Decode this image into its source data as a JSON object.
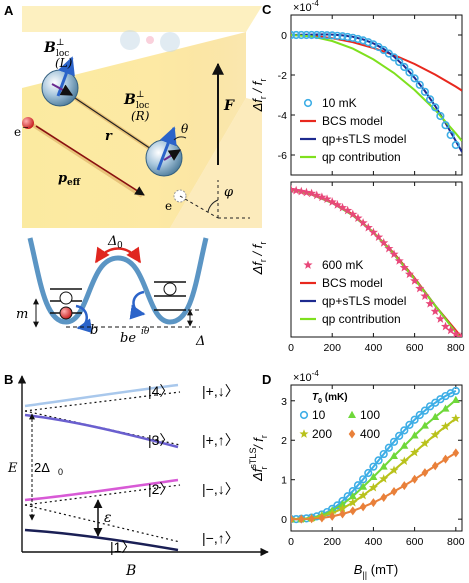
{
  "panels": {
    "A": {
      "label": "A",
      "spin_L": "B",
      "spin_L_sup": "⊥",
      "spin_L_sub": "loc",
      "spin_L_tag": "(L)",
      "spin_R_tag": "(R)",
      "theta": "θ",
      "phi": "φ",
      "force": "F",
      "r": "r",
      "p_eff": "p",
      "p_eff_sub": "eff",
      "electron": "e",
      "electron_sup": "−",
      "delta0": "Δ",
      "delta0_sub": "0",
      "m": "m",
      "b": "b",
      "b_phase": "be",
      "b_phase_sup": "iθ",
      "delta": "Δ"
    },
    "B": {
      "label": "B",
      "ylabel": "E",
      "xlabel": "B",
      "gap": "2Δ",
      "gap_sub": "0",
      "eps": "ε",
      "levels": [
        "|4〉",
        "|3〉",
        "|2〉",
        "|1〉"
      ],
      "asym": [
        "|+,↓〉",
        "|+,↑〉",
        "|−,↓〉",
        "|−,↑〉"
      ],
      "colors": [
        "#a9c8ec",
        "#6a5fcf",
        "#d85ad6",
        "#1a1f55"
      ]
    }
  },
  "chart_data": [
    {
      "panel": "C",
      "type": "line",
      "multiplier": "×10",
      "multiplier_exp": "-4",
      "ylabel": "Δf",
      "ylabel_sub": "r",
      "ylabel_tail": " / f",
      "xlim": [
        0,
        830
      ],
      "ylim": [
        -7,
        1
      ],
      "yticks": [
        0,
        -2,
        -4,
        -6
      ],
      "xticks": [
        0,
        200,
        400,
        600,
        800
      ],
      "show_xtick_labels": false,
      "legend_position": "bottom-left",
      "series": [
        {
          "name": "10 mK",
          "kind": "marker",
          "marker": "circle",
          "color": "#3eaee6",
          "x": [
            0,
            25,
            50,
            75,
            100,
            125,
            150,
            175,
            200,
            225,
            250,
            275,
            300,
            325,
            350,
            375,
            400,
            425,
            450,
            475,
            500,
            525,
            550,
            575,
            600,
            625,
            650,
            675,
            700,
            725,
            750,
            775,
            800
          ],
          "y": [
            0.0,
            0.0,
            0.0,
            0.0,
            0.0,
            0.0,
            0.0,
            -0.01,
            -0.02,
            -0.04,
            -0.06,
            -0.1,
            -0.14,
            -0.2,
            -0.27,
            -0.36,
            -0.47,
            -0.6,
            -0.75,
            -0.93,
            -1.12,
            -1.35,
            -1.6,
            -1.87,
            -2.17,
            -2.49,
            -2.84,
            -3.22,
            -3.62,
            -4.05,
            -4.51,
            -5.0,
            -5.5
          ]
        },
        {
          "name": "BCS model",
          "kind": "line",
          "color": "#e8281e",
          "x": [
            0,
            100,
            200,
            300,
            400,
            500,
            600,
            700,
            800,
            830
          ],
          "y": [
            0.0,
            -0.03,
            -0.16,
            -0.36,
            -0.65,
            -1.0,
            -1.45,
            -1.98,
            -2.58,
            -2.78
          ]
        },
        {
          "name": "qp+sTLS model",
          "kind": "line",
          "color": "#1d2a8f",
          "x": [
            0,
            50,
            100,
            150,
            200,
            250,
            300,
            350,
            400,
            450,
            500,
            550,
            600,
            650,
            700,
            750,
            800,
            830
          ],
          "y": [
            0.0,
            0.01,
            0.02,
            0.03,
            0.02,
            -0.02,
            -0.09,
            -0.22,
            -0.42,
            -0.7,
            -1.08,
            -1.56,
            -2.14,
            -2.8,
            -3.55,
            -4.4,
            -5.3,
            -5.85
          ]
        },
        {
          "name": "qp contribution",
          "kind": "line",
          "color": "#7fe01e",
          "x": [
            0,
            100,
            200,
            300,
            400,
            500,
            600,
            700,
            800,
            830
          ],
          "y": [
            0.0,
            -0.07,
            -0.3,
            -0.68,
            -1.22,
            -1.9,
            -2.75,
            -3.75,
            -4.92,
            -5.3
          ]
        }
      ]
    },
    {
      "panel": "C2",
      "type": "line",
      "ylabel": "Δf",
      "ylabel_sub": "r",
      "ylabel_tail": " / f",
      "xlim": [
        0,
        830
      ],
      "ylim": [
        -1.55,
        0.08
      ],
      "xticks": [
        0,
        200,
        400,
        600,
        800
      ],
      "legend_position": "bottom-left",
      "series": [
        {
          "name": "600 mK",
          "kind": "marker",
          "marker": "star",
          "color": "#e8487a",
          "x": [
            0,
            25,
            50,
            75,
            100,
            125,
            150,
            175,
            200,
            225,
            250,
            275,
            300,
            325,
            350,
            375,
            400,
            425,
            450,
            475,
            500,
            525,
            550,
            575,
            600,
            625,
            650,
            675,
            700,
            725,
            750,
            775,
            800,
            825
          ],
          "y": [
            0.0,
            -0.01,
            -0.02,
            -0.03,
            -0.04,
            -0.06,
            -0.08,
            -0.1,
            -0.13,
            -0.16,
            -0.19,
            -0.22,
            -0.26,
            -0.3,
            -0.35,
            -0.4,
            -0.45,
            -0.5,
            -0.56,
            -0.62,
            -0.68,
            -0.75,
            -0.82,
            -0.89,
            -0.96,
            -1.04,
            -1.12,
            -1.2,
            -1.28,
            -1.36,
            -1.44,
            -1.48,
            -1.52,
            -1.55
          ]
        },
        {
          "name": "BCS model",
          "kind": "line",
          "color": "#e8281e",
          "x": [
            0,
            100,
            200,
            300,
            400,
            500,
            600,
            700,
            800,
            830
          ],
          "y": [
            0.0,
            -0.05,
            -0.13,
            -0.26,
            -0.45,
            -0.67,
            -0.93,
            -1.22,
            -1.48,
            -1.56
          ]
        },
        {
          "name": "qp+sTLS model",
          "kind": "line",
          "color": "#1d2a8f",
          "x": [
            0,
            100,
            200,
            300,
            400,
            500,
            600,
            700,
            800,
            830
          ],
          "y": [
            0.0,
            -0.05,
            -0.14,
            -0.27,
            -0.45,
            -0.68,
            -0.94,
            -1.22,
            -1.5,
            -1.58
          ]
        },
        {
          "name": "qp contribution",
          "kind": "line",
          "color": "#7fe01e",
          "x": [
            0,
            100,
            200,
            300,
            400,
            500,
            600,
            700,
            800,
            830
          ],
          "y": [
            0.0,
            -0.05,
            -0.14,
            -0.27,
            -0.45,
            -0.68,
            -0.94,
            -1.22,
            -1.5,
            -1.58
          ]
        }
      ]
    },
    {
      "panel": "D",
      "type": "line",
      "multiplier": "×10",
      "multiplier_exp": "-4",
      "ylabel": "Δf",
      "ylabel_sup": "sTLS",
      "ylabel_sub": "r",
      "ylabel_tail": " / f",
      "xlabel": "B",
      "xlabel_sub": "||",
      "xlabel_unit": " (mT)",
      "xlim": [
        0,
        830
      ],
      "ylim": [
        -0.3,
        3.4
      ],
      "yticks": [
        0,
        1,
        2,
        3
      ],
      "xticks": [
        0,
        200,
        400,
        600,
        800
      ],
      "legend_title": "T",
      "legend_title_sub": "0",
      "legend_title_unit": " (mK)",
      "legend_position": "top-left",
      "series": [
        {
          "name": "10",
          "marker": "circle",
          "color": "#3eaee6",
          "x": [
            0,
            25,
            50,
            75,
            100,
            125,
            150,
            175,
            200,
            225,
            250,
            275,
            300,
            325,
            350,
            375,
            400,
            425,
            450,
            475,
            500,
            525,
            550,
            575,
            600,
            625,
            650,
            675,
            700,
            725,
            750,
            775,
            800
          ],
          "y": [
            0.0,
            0.0,
            0.01,
            0.02,
            0.04,
            0.07,
            0.12,
            0.18,
            0.26,
            0.35,
            0.46,
            0.58,
            0.71,
            0.86,
            1.01,
            1.17,
            1.33,
            1.49,
            1.65,
            1.81,
            1.96,
            2.11,
            2.25,
            2.39,
            2.52,
            2.64,
            2.75,
            2.86,
            2.95,
            3.04,
            3.12,
            3.19,
            3.25
          ]
        },
        {
          "name": "100",
          "marker": "triangle",
          "color": "#6fd83a",
          "x": [
            0,
            50,
            100,
            150,
            200,
            250,
            300,
            350,
            400,
            450,
            500,
            550,
            600,
            650,
            700,
            750,
            800
          ],
          "y": [
            0.0,
            0.01,
            0.03,
            0.1,
            0.22,
            0.38,
            0.58,
            0.82,
            1.07,
            1.33,
            1.6,
            1.86,
            2.12,
            2.37,
            2.59,
            2.8,
            3.02
          ]
        },
        {
          "name": "200",
          "marker": "star",
          "color": "#b9c21c",
          "x": [
            0,
            50,
            100,
            150,
            200,
            250,
            300,
            350,
            400,
            450,
            500,
            550,
            600,
            650,
            700,
            750,
            800
          ],
          "y": [
            0.0,
            0.0,
            0.02,
            0.07,
            0.15,
            0.27,
            0.42,
            0.6,
            0.8,
            1.02,
            1.24,
            1.47,
            1.69,
            1.92,
            2.14,
            2.35,
            2.55
          ]
        },
        {
          "name": "400",
          "marker": "diamond",
          "color": "#e9803a",
          "x": [
            0,
            50,
            100,
            150,
            200,
            250,
            300,
            350,
            400,
            450,
            500,
            550,
            600,
            650,
            700,
            750,
            800
          ],
          "y": [
            0.0,
            0.0,
            0.01,
            0.03,
            0.07,
            0.13,
            0.21,
            0.31,
            0.42,
            0.55,
            0.7,
            0.85,
            1.01,
            1.18,
            1.35,
            1.52,
            1.68
          ]
        }
      ]
    }
  ]
}
